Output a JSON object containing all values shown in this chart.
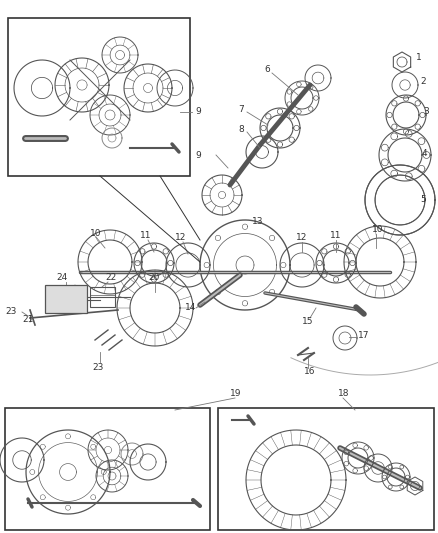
{
  "bg_color": "#ffffff",
  "fig_width": 4.38,
  "fig_height": 5.33,
  "dpi": 100,
  "label_fontsize": 6.5,
  "line_color": "#555555",
  "text_color": "#333333",
  "gear_dark": "#555555",
  "gear_mid": "#888888",
  "gear_light": "#bbbbbb",
  "part_color": "#777777"
}
